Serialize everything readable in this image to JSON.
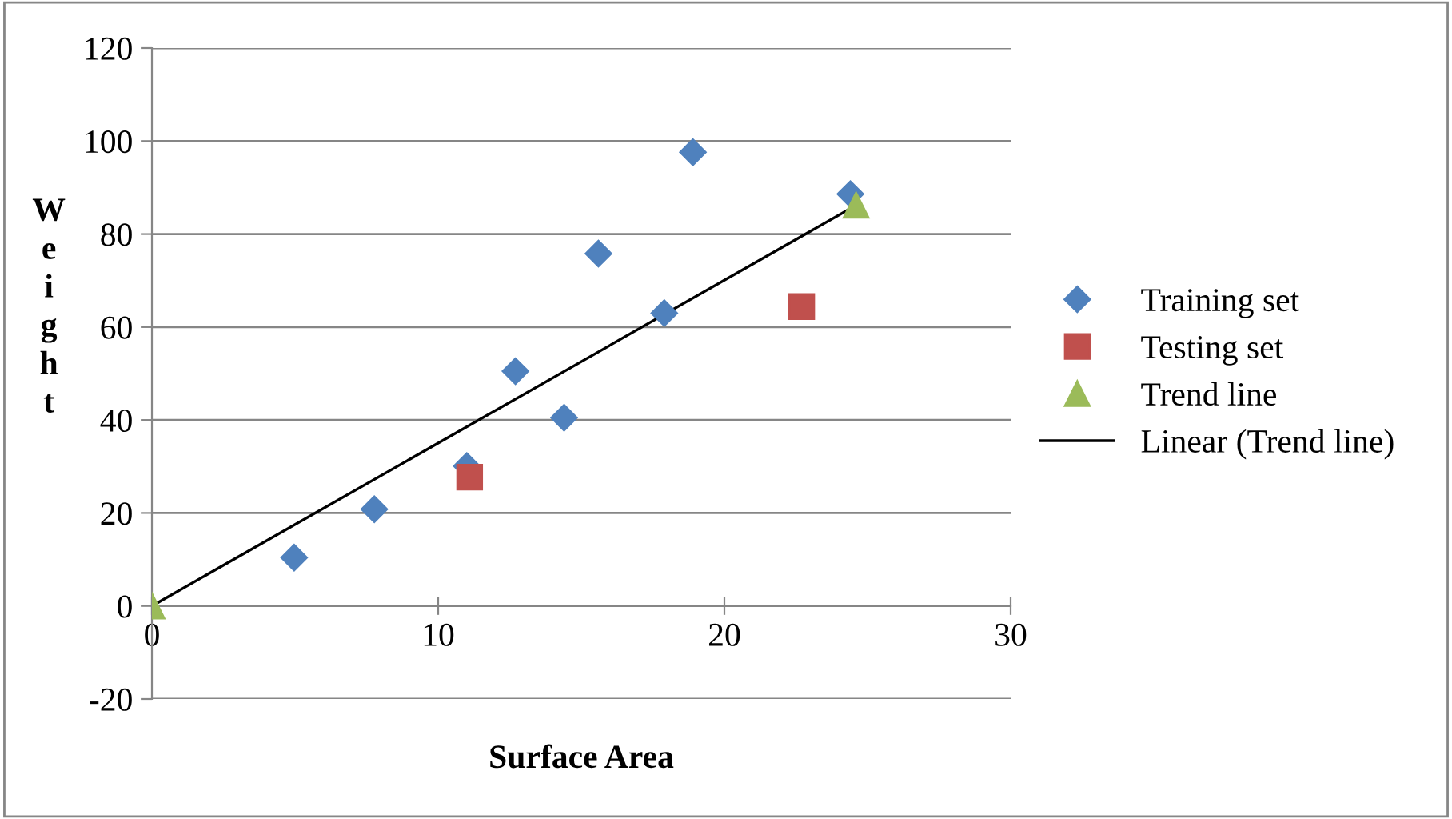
{
  "chart_data": {
    "type": "scatter",
    "xlabel": "Surface Area",
    "ylabel": "Weight",
    "xlim": [
      0,
      30
    ],
    "ylim": [
      -20,
      120
    ],
    "xticks": [
      0,
      10,
      20,
      30
    ],
    "yticks": [
      -20,
      0,
      20,
      40,
      60,
      80,
      100,
      120
    ],
    "grid": "y",
    "legend": "right",
    "series": [
      {
        "name": "Training set",
        "color": "#4f81bd",
        "marker": "diamond",
        "x": [
          4.97,
          7.77,
          11.0,
          12.7,
          14.4,
          15.6,
          17.9,
          18.9,
          24.4
        ],
        "values": [
          10.4,
          20.8,
          30.1,
          50.5,
          40.5,
          75.8,
          63,
          97.6,
          88.6
        ]
      },
      {
        "name": "Testing set",
        "color": "#c0504d",
        "marker": "square",
        "x": [
          11.1,
          22.7
        ],
        "values": [
          27.7,
          64.4
        ]
      },
      {
        "name": "Trend line",
        "color": "#9bbb59",
        "marker": "triangle",
        "x": [
          0,
          24.6
        ],
        "values": [
          0,
          86.2
        ]
      },
      {
        "name": "Linear (Trend line)",
        "type": "line",
        "color": "#000000",
        "marker": "none",
        "x": [
          0,
          24.6
        ],
        "values": [
          0,
          86.2
        ]
      }
    ]
  }
}
